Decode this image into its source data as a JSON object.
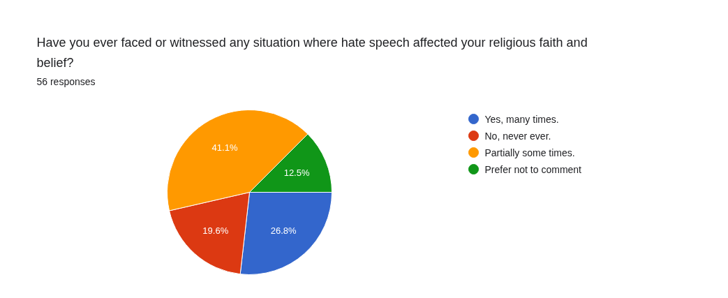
{
  "chart_data": {
    "type": "pie",
    "title": "Have you ever faced or witnessed any situation where hate speech affected your religious faith and belief?",
    "subtitle": "56 responses",
    "categories": [
      "Yes, many times.",
      "No, never ever.",
      "Partially some times.",
      "Prefer not to comment"
    ],
    "values": [
      26.8,
      19.6,
      41.1,
      12.5
    ],
    "colors": [
      "#3366cc",
      "#dc3912",
      "#ff9900",
      "#109618"
    ],
    "value_labels": [
      "26.8%",
      "19.6%",
      "41.1%",
      "12.5%"
    ],
    "legend": "right"
  }
}
